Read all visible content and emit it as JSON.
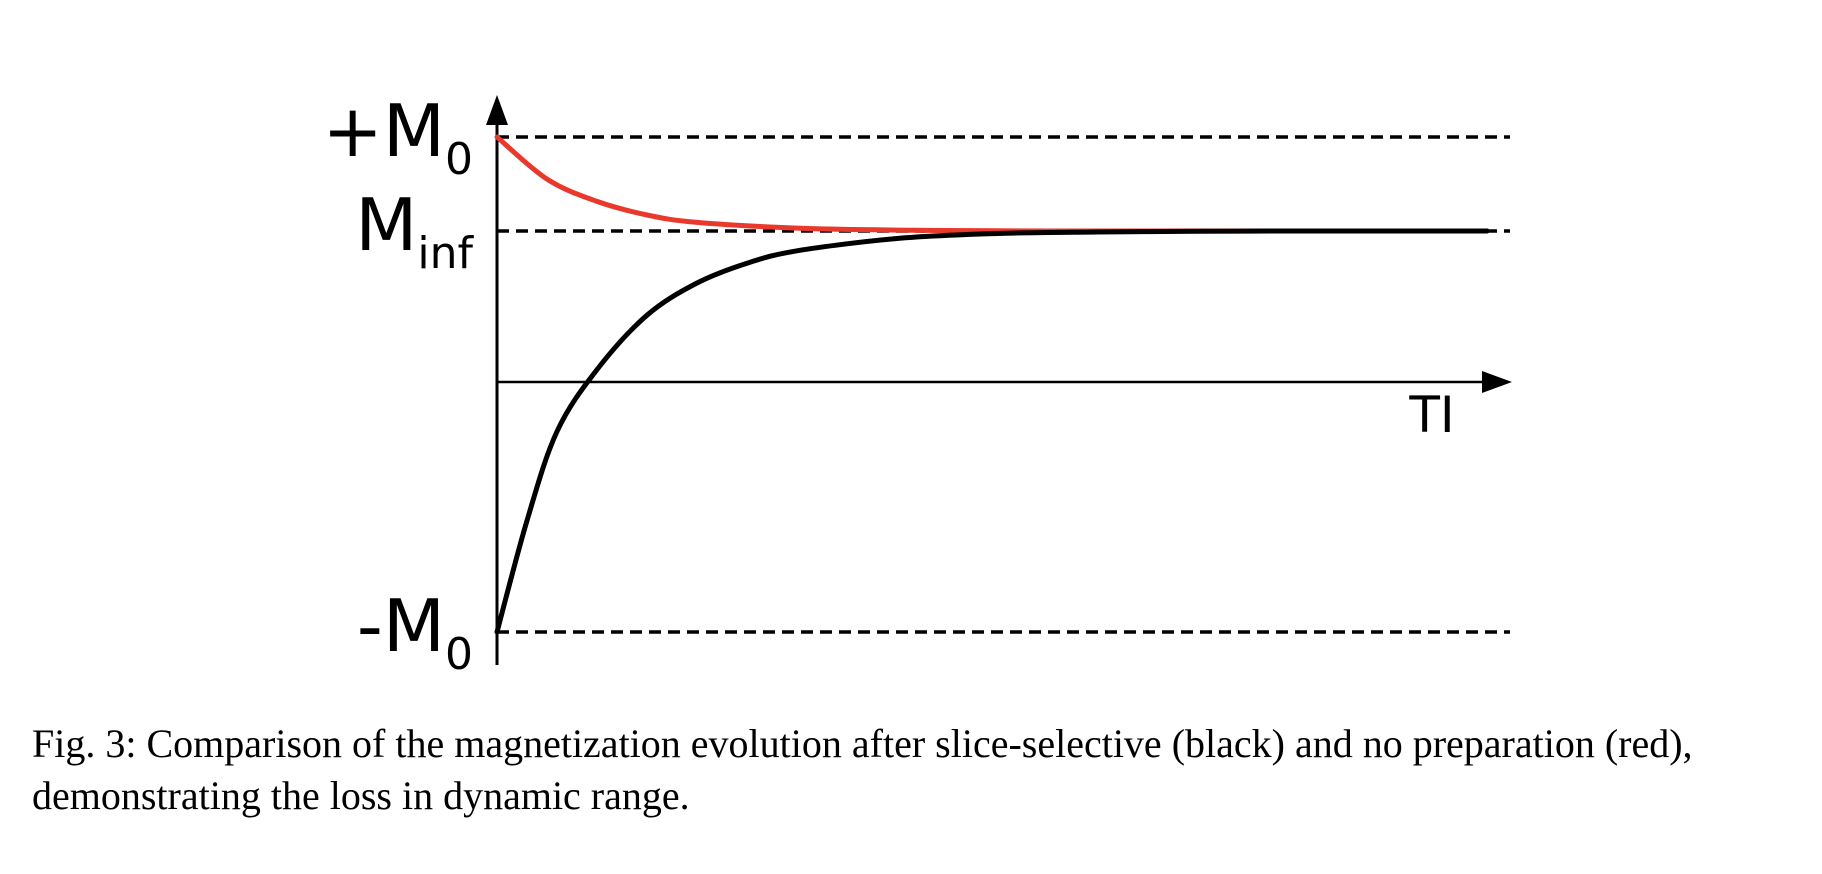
{
  "caption": "Fig. 3: Comparison of the magnetization evolution after slice-selective (black) and no preparation (red), demonstrating the loss in dynamic range.",
  "chart_data": {
    "type": "line",
    "xlabel": "TI",
    "ylabel": "",
    "ylim": [
      -1,
      1
    ],
    "xlim": [
      0,
      1
    ],
    "grid": false,
    "reference_lines": [
      {
        "label_main": "+M",
        "label_sub": "0",
        "y": 1.0
      },
      {
        "label_main": "M",
        "label_sub": "inf",
        "y": 0.62
      },
      {
        "label_main": "-M",
        "label_sub": "0",
        "y": -1.0
      }
    ],
    "series": [
      {
        "color": "#e8392c",
        "x": [
          0,
          0.05,
          0.1,
          0.15,
          0.2,
          0.3,
          0.4,
          0.5,
          0.6,
          0.7,
          0.8,
          0.9,
          0.99
        ],
        "values": [
          1.0,
          0.83,
          0.74,
          0.685,
          0.655,
          0.632,
          0.624,
          0.621,
          0.62,
          0.62,
          0.62,
          0.62,
          0.62
        ]
      },
      {
        "color": "#000000",
        "x": [
          0,
          0.03,
          0.06,
          0.1,
          0.15,
          0.2,
          0.25,
          0.3,
          0.4,
          0.5,
          0.6,
          0.7,
          0.8,
          0.9,
          0.99
        ],
        "values": [
          -1.0,
          -0.55,
          -0.19,
          0.06,
          0.28,
          0.41,
          0.49,
          0.54,
          0.59,
          0.61,
          0.616,
          0.619,
          0.62,
          0.62,
          0.62
        ]
      }
    ]
  }
}
